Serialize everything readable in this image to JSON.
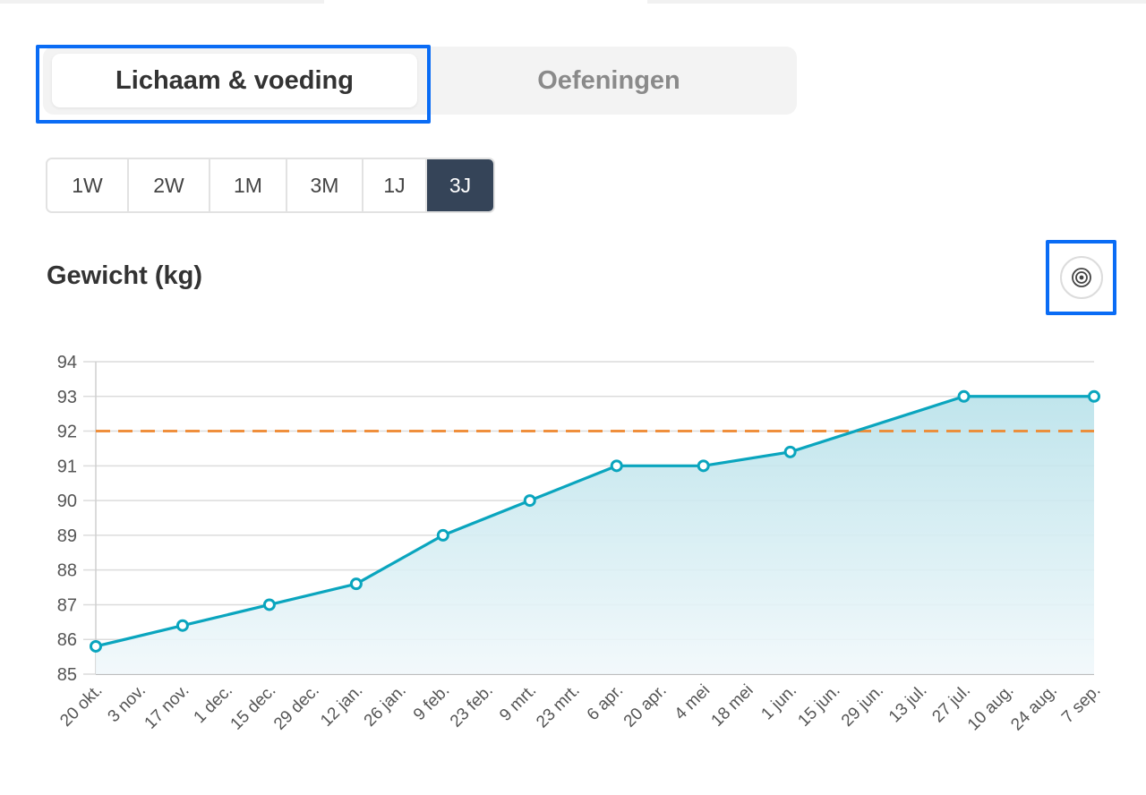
{
  "tabs": [
    {
      "label": "Lichaam & voeding",
      "active": true
    },
    {
      "label": "Oefeningen",
      "active": false
    }
  ],
  "range_options": [
    "1W",
    "2W",
    "1M",
    "3M",
    "1J",
    "3J"
  ],
  "range_selected": "3J",
  "section_title": "Gewicht (kg)",
  "goal_button_icon": "target-icon",
  "colors": {
    "line": "#0aa5be",
    "area_top": "#b9e2ea",
    "area_bottom": "#f1f8fb",
    "goal_line": "#f0862a",
    "highlight": "#0a6cf5",
    "active_range": "#354458"
  },
  "chart_data": {
    "type": "area",
    "title": "Gewicht (kg)",
    "ylim": [
      85,
      94
    ],
    "yticks": [
      85,
      86,
      87,
      88,
      89,
      90,
      91,
      92,
      93,
      94
    ],
    "goal_value": 92,
    "grid": true,
    "categories": [
      "20 okt.",
      "3 nov.",
      "17 nov.",
      "1 dec.",
      "15 dec.",
      "29 dec.",
      "12 jan.",
      "26 jan.",
      "9 feb.",
      "23 feb.",
      "9 mrt.",
      "23 mrt.",
      "6 apr.",
      "20 apr.",
      "4 mei",
      "18 mei",
      "1 jun.",
      "15 jun.",
      "29 jun.",
      "13 jul.",
      "27 jul.",
      "10 aug.",
      "24 aug.",
      "7 sep."
    ],
    "points": [
      {
        "x": "20 okt.",
        "y": 85.8
      },
      {
        "x": "17 nov.",
        "y": 86.4
      },
      {
        "x": "15 dec.",
        "y": 87.0
      },
      {
        "x": "12 jan.",
        "y": 87.6
      },
      {
        "x": "9 feb.",
        "y": 89.0
      },
      {
        "x": "9 mrt.",
        "y": 90.0
      },
      {
        "x": "6 apr.",
        "y": 91.0
      },
      {
        "x": "4 mei",
        "y": 91.0
      },
      {
        "x": "1 jun.",
        "y": 91.4
      },
      {
        "x": "27 jul.",
        "y": 93.0
      },
      {
        "x": "7 sep.",
        "y": 93.0
      }
    ]
  }
}
